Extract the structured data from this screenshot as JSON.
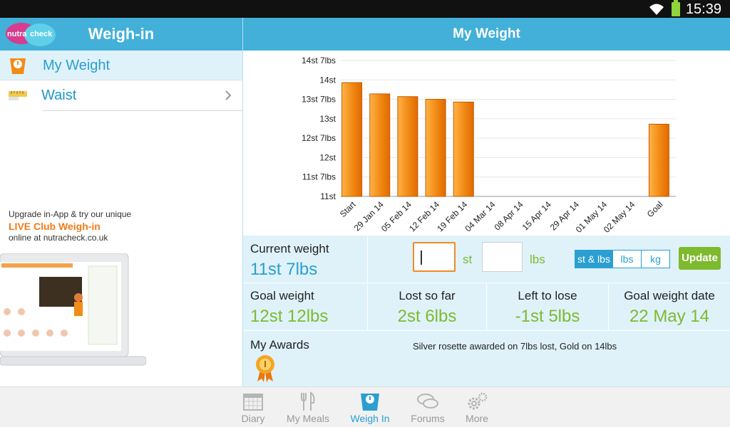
{
  "status": {
    "time": "15:39"
  },
  "left": {
    "logo_text_a": "nutra",
    "logo_text_b": "check",
    "title": "Weigh-in",
    "items": [
      {
        "label": "My Weight",
        "icon": "scale-icon",
        "selected": true
      },
      {
        "label": "Waist",
        "icon": "tape-measure-icon",
        "selected": false
      }
    ],
    "promo": {
      "line1": "Upgrade in-App & try our unique",
      "title": "LIVE Club Weigh-in",
      "line2": "online at nutracheck.co.uk"
    }
  },
  "right": {
    "title": "My Weight",
    "current": {
      "label": "Current weight",
      "value": "11st 7lbs"
    },
    "inputs": {
      "st_unit": "st",
      "lbs_unit": "lbs"
    },
    "units": [
      "st & lbs",
      "lbs",
      "kg"
    ],
    "update_label": "Update",
    "stats": [
      {
        "label": "Goal weight",
        "value": "12st 12lbs"
      },
      {
        "label": "Lost so far",
        "value": "2st 6lbs"
      },
      {
        "label": "Left to lose",
        "value": "-1st 5lbs"
      },
      {
        "label": "Goal weight date",
        "value": "22 May 14"
      }
    ],
    "awards": {
      "label": "My Awards",
      "desc": "Silver rosette awarded on 7lbs lost, Gold on 14lbs"
    }
  },
  "chart_data": {
    "type": "bar",
    "categories": [
      "Start",
      "29 Jan 14",
      "05 Feb 14",
      "12 Feb 14",
      "19 Feb 14",
      "04 Mar 14",
      "08 Apr 14",
      "15 Apr 14",
      "29 Apr 14",
      "01 May 14",
      "02 May 14",
      "Goal"
    ],
    "values": [
      13.93,
      13.64,
      13.57,
      13.5,
      13.43,
      null,
      null,
      null,
      null,
      null,
      null,
      12.86
    ],
    "ylim": [
      11,
      14.5
    ],
    "yticks": [
      {
        "v": 11,
        "label": "11st"
      },
      {
        "v": 11.5,
        "label": "11st 7lbs"
      },
      {
        "v": 12,
        "label": "12st"
      },
      {
        "v": 12.5,
        "label": "12st 7lbs"
      },
      {
        "v": 13,
        "label": "13st"
      },
      {
        "v": 13.5,
        "label": "13st 7lbs"
      },
      {
        "v": 14,
        "label": "14st"
      },
      {
        "v": 14.5,
        "label": "14st 7lbs"
      }
    ],
    "bar_color": "#f28c17",
    "grid": true
  },
  "nav": [
    {
      "label": "Diary",
      "icon": "calendar-icon",
      "active": false
    },
    {
      "label": "My Meals",
      "icon": "cutlery-icon",
      "active": false
    },
    {
      "label": "Weigh In",
      "icon": "scale-icon",
      "active": true
    },
    {
      "label": "Forums",
      "icon": "chat-bubbles-icon",
      "active": false
    },
    {
      "label": "More",
      "icon": "gears-icon",
      "active": false
    }
  ]
}
